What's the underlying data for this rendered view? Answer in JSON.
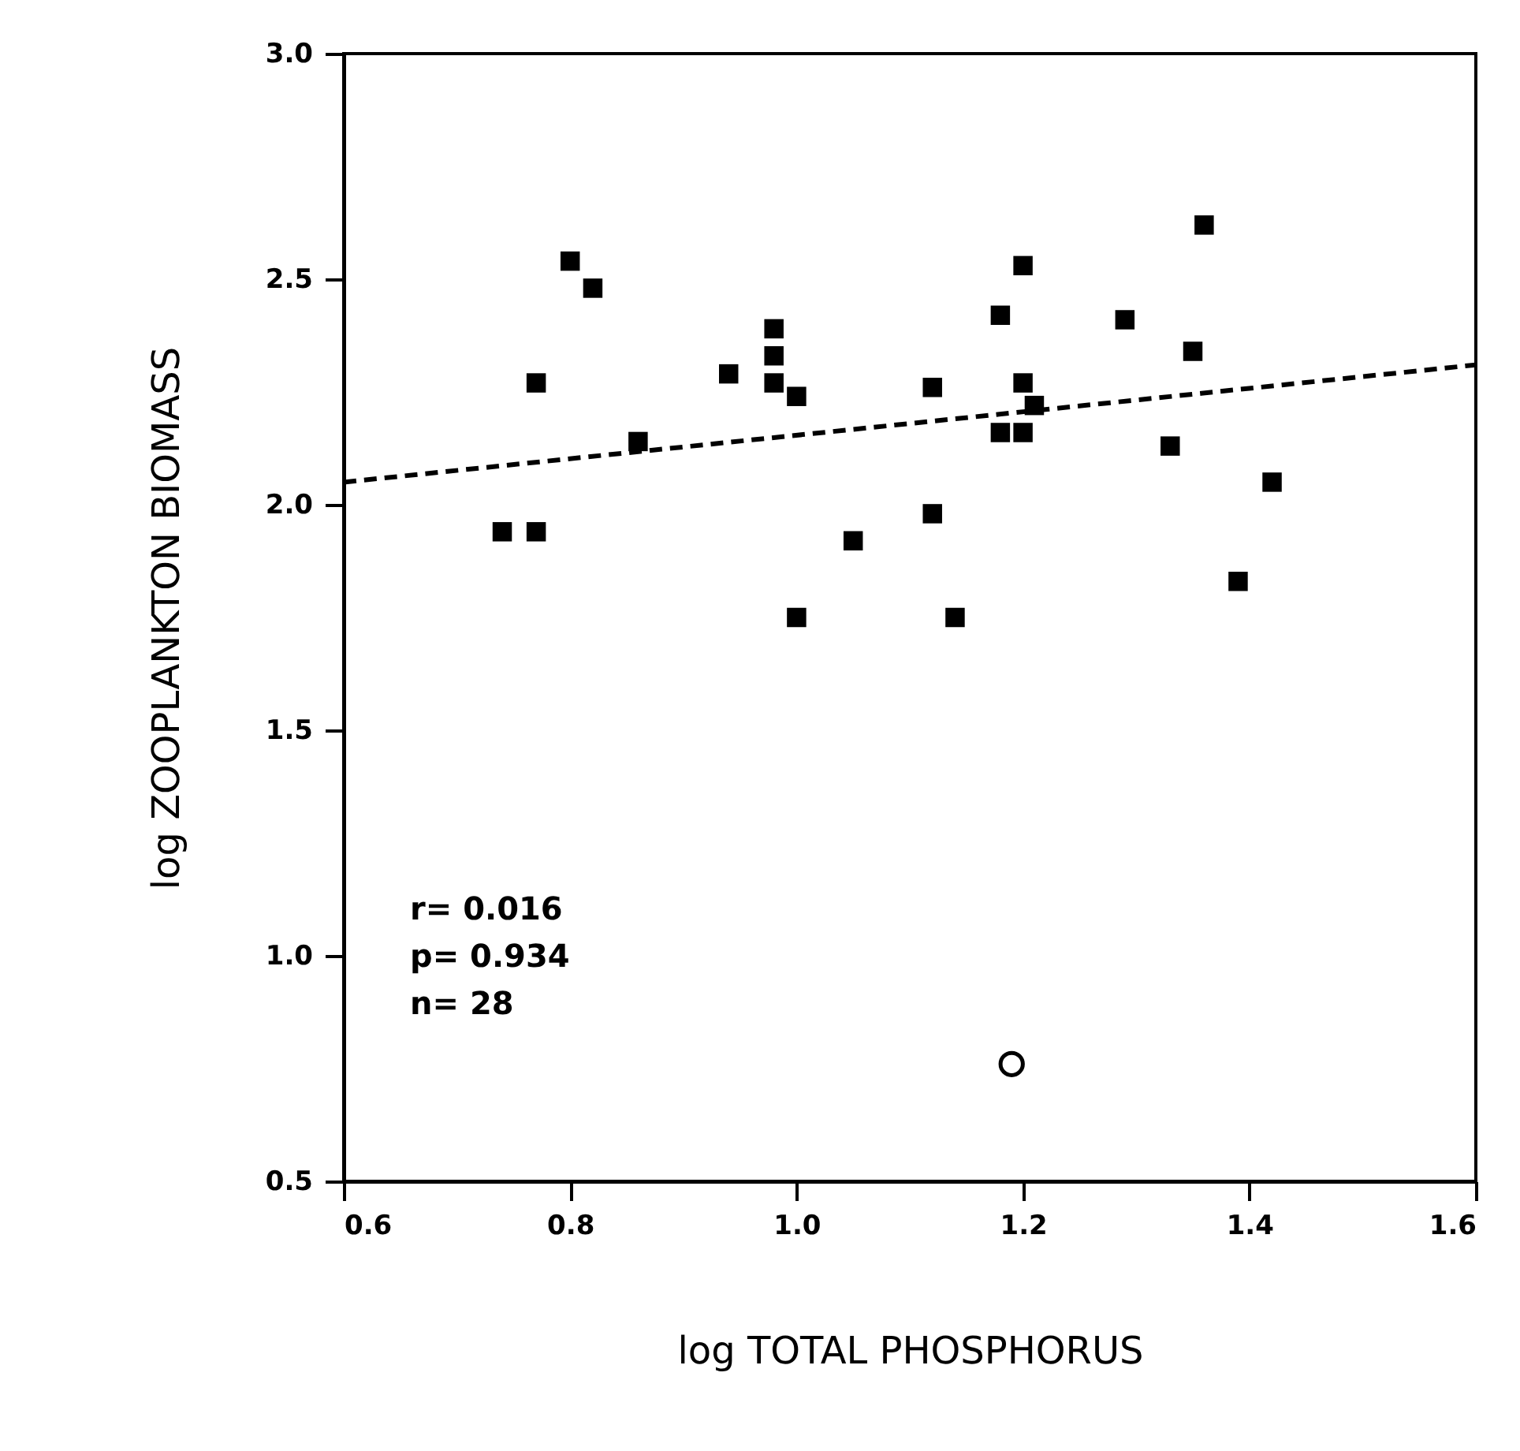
{
  "chart_data": {
    "type": "scatter",
    "xlabel": "log TOTAL PHOSPHORUS",
    "ylabel": "log ZOOPLANKTON BIOMASS",
    "series": [
      {
        "marker": "square",
        "color": "#000000",
        "x": [
          0.74,
          0.77,
          0.8,
          0.82,
          0.77,
          0.86,
          0.94,
          0.98,
          0.98,
          0.98,
          1.0,
          1.0,
          1.05,
          1.12,
          1.12,
          1.14,
          1.18,
          1.2,
          1.2,
          1.21,
          1.18,
          1.2,
          1.29,
          1.35,
          1.36,
          1.33,
          1.42,
          1.39
        ],
        "values": [
          1.94,
          1.94,
          2.54,
          2.48,
          2.27,
          2.14,
          2.29,
          2.39,
          2.33,
          2.27,
          2.24,
          1.75,
          1.92,
          2.26,
          1.98,
          1.75,
          2.42,
          2.53,
          2.27,
          2.22,
          2.16,
          2.16,
          2.41,
          2.34,
          2.62,
          2.13,
          2.05,
          1.83
        ]
      },
      {
        "marker": "circle",
        "color": "#000000",
        "x": [
          1.19
        ],
        "values": [
          0.76
        ]
      },
      {
        "type": "line",
        "line_style": "dashed",
        "color": "#000000",
        "x": [
          0.6,
          1.6
        ],
        "values": [
          2.05,
          2.31
        ]
      }
    ],
    "xlim": [
      0.6,
      1.6
    ],
    "xticks": [
      {
        "value": 0.6,
        "label": "0.6"
      },
      {
        "value": 0.8,
        "label": "0.8"
      },
      {
        "value": 1.0,
        "label": "1.0"
      },
      {
        "value": 1.2,
        "label": "1.2"
      },
      {
        "value": 1.4,
        "label": "1.4"
      },
      {
        "value": 1.6,
        "label": "1.6"
      }
    ],
    "ylim": [
      0.5,
      3.0
    ],
    "yticks": [
      0.5,
      {
        "value": 1.0,
        "label": "1.0"
      },
      1.5,
      {
        "value": 2.0,
        "label": "2.0"
      },
      2.5,
      {
        "value": 3.0,
        "label": "3.0"
      }
    ],
    "grid": false,
    "annotations": [
      "r= 0.016",
      "p= 0.934",
      "n= 28"
    ]
  }
}
